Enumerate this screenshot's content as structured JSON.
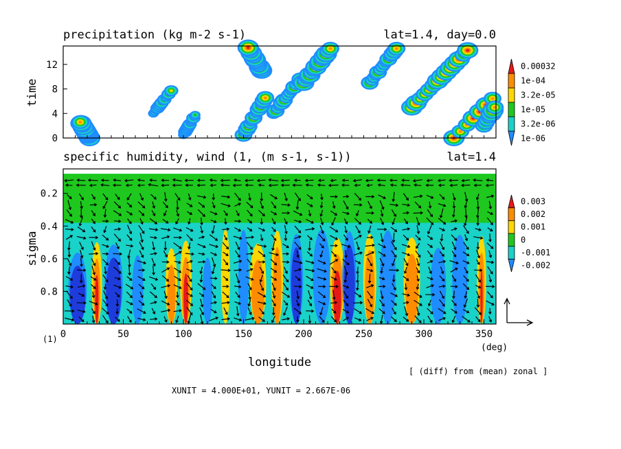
{
  "chart_data": [
    {
      "type": "heatmap",
      "title": "precipitation (kg m-2 s-1)",
      "title_right": "lat=1.4, day=0.0",
      "ylabel": "time",
      "xlim": [
        0,
        360
      ],
      "ylim": [
        0,
        15
      ],
      "yticks": [
        "0",
        "4",
        "8",
        "12"
      ],
      "colorbar": {
        "labels": [
          "1e-06",
          "3.2e-06",
          "1e-05",
          "3.2e-05",
          "1e-04",
          "0.00032"
        ],
        "colors": [
          "#1f8cff",
          "#19d2c8",
          "#1ec81e",
          "#ffd700",
          "#ff8c00",
          "#e61919"
        ]
      },
      "patterns": [
        {
          "lon": 22,
          "t0": 0,
          "t1": 2.8,
          "slope": -3,
          "level": 5
        },
        {
          "lon": 75,
          "t0": 4,
          "t1": 8,
          "slope": 4,
          "level": 3
        },
        {
          "lon": 100,
          "t0": 0.5,
          "t1": 4,
          "slope": 3,
          "level": 3
        },
        {
          "lon": 150,
          "t0": 0.5,
          "t1": 7,
          "slope": 3,
          "level": 4
        },
        {
          "lon": 175,
          "t0": 4,
          "t1": 10,
          "slope": 4,
          "level": 4
        },
        {
          "lon": 165,
          "t0": 11,
          "t1": 15,
          "slope": -3,
          "level": 5
        },
        {
          "lon": 200,
          "t0": 9,
          "t1": 15,
          "slope": 4,
          "level": 5
        },
        {
          "lon": 255,
          "t0": 9,
          "t1": 15,
          "slope": 4,
          "level": 4
        },
        {
          "lon": 290,
          "t0": 5,
          "t1": 15,
          "slope": 5,
          "level": 5
        },
        {
          "lon": 325,
          "t0": 0,
          "t1": 15,
          "slope": 5,
          "level": 5
        },
        {
          "lon": 350,
          "t0": 2,
          "t1": 9,
          "slope": 3,
          "level": 5
        }
      ]
    },
    {
      "type": "heatmap",
      "title": "specific humidity, wind (1, (m s-1, s-1))",
      "title_right": "lat=1.4",
      "ylabel": "sigma",
      "xlabel": "longitude",
      "xunit": "(deg)",
      "xlim": [
        0,
        360
      ],
      "ylim": [
        1.0,
        0.05
      ],
      "xticks": [
        "0",
        "50",
        "100",
        "150",
        "200",
        "250",
        "300",
        "350"
      ],
      "yticks": [
        "0.2",
        "0.4",
        "0.6",
        "0.8"
      ],
      "colorbar": {
        "labels": [
          "-0.002",
          "-0.001",
          "0",
          "0.001",
          "0.002",
          "0.003"
        ],
        "colors": [
          "#1f8cff",
          "#19d2c8",
          "#1ec81e",
          "#ffd700",
          "#ff8c00",
          "#e61919"
        ]
      },
      "negative_color": "#1e3cdc",
      "columns": [
        {
          "lon": 12,
          "value": -0.003
        },
        {
          "lon": 28,
          "value": 0.003
        },
        {
          "lon": 42,
          "value": -0.003
        },
        {
          "lon": 62,
          "value": -0.002
        },
        {
          "lon": 90,
          "value": 0.002
        },
        {
          "lon": 102,
          "value": 0.003
        },
        {
          "lon": 120,
          "value": -0.002
        },
        {
          "lon": 135,
          "value": 0.001
        },
        {
          "lon": 150,
          "value": -0.002
        },
        {
          "lon": 162,
          "value": 0.002
        },
        {
          "lon": 178,
          "value": 0.002
        },
        {
          "lon": 194,
          "value": -0.003
        },
        {
          "lon": 215,
          "value": -0.002
        },
        {
          "lon": 228,
          "value": 0.003
        },
        {
          "lon": 238,
          "value": -0.003
        },
        {
          "lon": 255,
          "value": 0.002
        },
        {
          "lon": 270,
          "value": -0.002
        },
        {
          "lon": 290,
          "value": 0.002
        },
        {
          "lon": 312,
          "value": -0.002
        },
        {
          "lon": 330,
          "value": -0.001
        },
        {
          "lon": 348,
          "value": 0.003
        }
      ]
    }
  ],
  "labels": {
    "row_index": "(1)",
    "diff_note": "[ (diff) from (mean) zonal ]",
    "units_line": "XUNIT = 4.000E+01, YUNIT = 2.667E-06"
  }
}
